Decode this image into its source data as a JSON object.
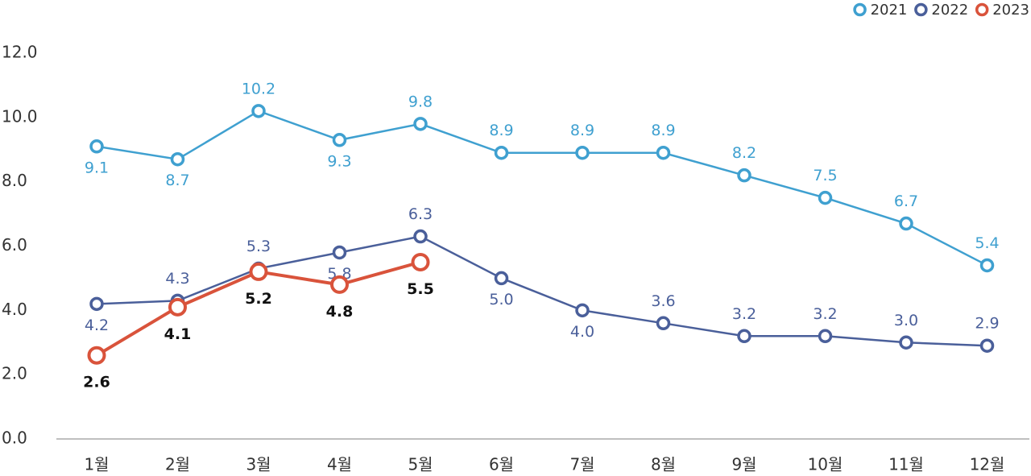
{
  "chart_data": {
    "type": "line",
    "categories": [
      "1월",
      "2월",
      "3월",
      "4월",
      "5월",
      "6월",
      "7월",
      "8월",
      "9월",
      "10월",
      "11월",
      "12월"
    ],
    "series": [
      {
        "name": "2021",
        "color": "#3fa0d0",
        "values": [
          9.1,
          8.7,
          10.2,
          9.3,
          9.8,
          8.9,
          8.9,
          8.9,
          8.2,
          7.5,
          6.7,
          5.4
        ],
        "value_labels": [
          "9.1",
          "8.7",
          "10.2",
          "9.3",
          "9.8",
          "8.9",
          "8.9",
          "8.9",
          "8.2",
          "7.5",
          "6.7",
          "5.4"
        ]
      },
      {
        "name": "2022",
        "color": "#4a5f9a",
        "values": [
          4.2,
          4.3,
          5.3,
          5.8,
          6.3,
          5.0,
          4.0,
          3.6,
          3.2,
          3.2,
          3.0,
          2.9
        ],
        "value_labels": [
          "4.2",
          "4.3",
          "5.3",
          "5.8",
          "6.3",
          "5.0",
          "4.0",
          "3.6",
          "3.2",
          "3.2",
          "3.0",
          "2.9"
        ]
      },
      {
        "name": "2023",
        "color": "#d9533b",
        "values": [
          2.6,
          4.1,
          5.2,
          4.8,
          5.5,
          null,
          null,
          null,
          null,
          null,
          null,
          null
        ],
        "value_labels": [
          "2.6",
          "4.1",
          "5.2",
          "4.8",
          "5.5",
          null,
          null,
          null,
          null,
          null,
          null,
          null
        ]
      }
    ],
    "ylim": [
      0,
      12
    ],
    "yticks": [
      {
        "value": 0,
        "label": "0.0"
      },
      {
        "value": 2,
        "label": "2.0"
      },
      {
        "value": 4,
        "label": "4.0"
      },
      {
        "value": 6,
        "label": "6.0"
      },
      {
        "value": 8,
        "label": "8.0"
      },
      {
        "value": 10,
        "label": "10.0"
      },
      {
        "value": 12,
        "label": "12.0"
      }
    ],
    "legend": "top-right"
  }
}
